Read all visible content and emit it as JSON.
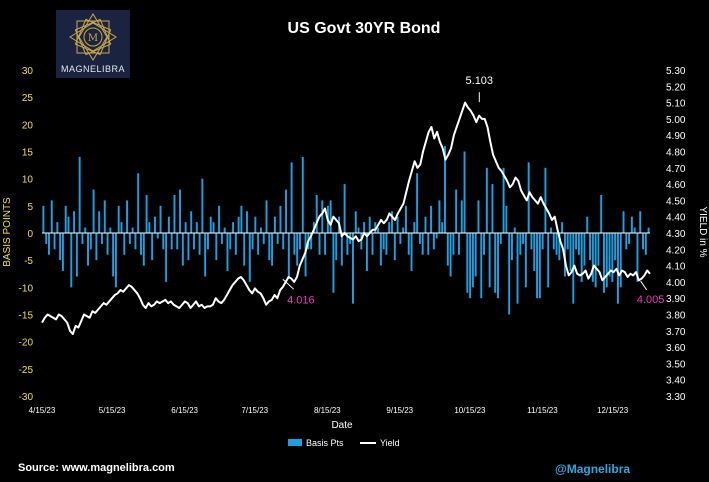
{
  "logo": {
    "text": "MAGNELIBRA"
  },
  "footer": {
    "source": "Source: www.magnelibra.com",
    "handle": "@Magnelibra"
  },
  "colors": {
    "bars": "#1e9fe0",
    "yield": "#ffffff",
    "annotation_low": "#e040c0",
    "left_axis": "#f0e040",
    "background": "#000000"
  },
  "chart_data": {
    "type": "bar+line",
    "title": "US Govt 30YR Bond",
    "xlabel": "Date",
    "ylabel_left": "BASIS POINTS",
    "ylabel_right": "YIELD in %",
    "ylim_left": [
      -30,
      30
    ],
    "ylim_right": [
      3.3,
      5.3
    ],
    "yticks_left": [
      "-30",
      "-25",
      "-20",
      "-15",
      "-10",
      "-5",
      "0",
      "5",
      "10",
      "15",
      "20",
      "25",
      "30"
    ],
    "yticks_right": [
      "3.30",
      "3.40",
      "3.50",
      "3.60",
      "3.70",
      "3.80",
      "3.90",
      "4.00",
      "4.10",
      "4.20",
      "4.30",
      "4.40",
      "4.50",
      "4.60",
      "4.70",
      "4.80",
      "4.90",
      "5.00",
      "5.10",
      "5.20",
      "5.30"
    ],
    "xticks": [
      "4/15/23",
      "5/15/23",
      "6/15/23",
      "7/15/23",
      "8/15/23",
      "9/15/23",
      "10/15/23",
      "11/15/23",
      "12/15/23"
    ],
    "x_range": [
      "4/15/23",
      "12/31/23"
    ],
    "legend": [
      "Basis Pts",
      "Yield"
    ],
    "legend_position": "bottom-center",
    "annotations": [
      {
        "label": "5.103",
        "date": "10/19/23",
        "value": 5.103,
        "color": "#ffffff"
      },
      {
        "label": "4.016",
        "date": "7/27/23",
        "value": 4.016,
        "color": "#e040c0"
      },
      {
        "label": "4.005",
        "date": "12/27/23",
        "value": 4.005,
        "color": "#e040c0"
      }
    ],
    "series": [
      {
        "name": "Basis Pts",
        "kind": "bar",
        "values": [
          5,
          -2,
          -4,
          6,
          -3,
          2,
          -5,
          -7,
          5,
          3,
          -10,
          4,
          -8,
          14,
          -2,
          1,
          -6,
          -3,
          8,
          -5,
          4,
          -2,
          6,
          -4,
          1,
          -8,
          -10,
          5,
          2,
          -4,
          6,
          -2,
          1,
          -3,
          11,
          -4,
          -6,
          7,
          2,
          -5,
          3,
          -1,
          5,
          -3,
          -9,
          3,
          -3,
          7,
          -3,
          8,
          -6,
          2,
          -5,
          4,
          -3,
          2,
          -4,
          10,
          -8,
          -3,
          3,
          2,
          -5,
          5,
          -2,
          1,
          -7,
          -3,
          2,
          -4,
          3,
          5,
          -6,
          4,
          -9,
          -3,
          3,
          -4,
          1,
          -2,
          6,
          -5,
          -6,
          3,
          -2,
          5,
          -3,
          8,
          -8,
          13,
          -4,
          -6,
          -3,
          14,
          -8,
          -3,
          -3,
          2,
          7,
          -4,
          6,
          -4,
          5,
          6,
          -11,
          -5,
          3,
          -6,
          9,
          -4,
          -2,
          -13,
          4,
          1,
          -3,
          2,
          -7,
          3,
          -4,
          2,
          1,
          -6,
          -3,
          -4,
          2,
          4,
          -5,
          3,
          -2,
          1,
          5,
          -4,
          -7,
          2,
          11,
          -2,
          -4,
          3,
          -4,
          5,
          -3,
          -1,
          6,
          2,
          16,
          -6,
          -8,
          -4,
          8,
          -4,
          6,
          15,
          -11,
          -12,
          -10,
          -8,
          6,
          -12,
          -4,
          12,
          -10,
          9,
          -11,
          -12,
          -2,
          12,
          5,
          -15,
          -5,
          1,
          -13,
          -4,
          -2,
          -10,
          13,
          -3,
          -7,
          -12,
          -12,
          -3,
          12,
          -10,
          1,
          -3,
          -4,
          -5,
          2,
          -8,
          -3,
          -7,
          -13,
          -3,
          -4,
          -9,
          -6,
          3,
          -5,
          -9,
          -10,
          -6,
          7,
          -11,
          -10,
          -8,
          -9,
          -5,
          -13,
          -10,
          4,
          -3,
          -2,
          3,
          1,
          -9,
          4,
          -3,
          -4,
          1
        ],
        "note": "one value per trading day from 4/17/23 to 12/29/23 (approximate, read off chart)"
      },
      {
        "name": "Yield",
        "kind": "line",
        "values": [
          3.75,
          3.78,
          3.8,
          3.79,
          3.78,
          3.77,
          3.8,
          3.79,
          3.77,
          3.75,
          3.7,
          3.68,
          3.73,
          3.72,
          3.76,
          3.8,
          3.79,
          3.78,
          3.82,
          3.81,
          3.83,
          3.85,
          3.87,
          3.86,
          3.88,
          3.9,
          3.92,
          3.93,
          3.95,
          3.94,
          3.96,
          3.98,
          3.97,
          3.95,
          3.93,
          3.9,
          3.86,
          3.84,
          3.87,
          3.85,
          3.86,
          3.88,
          3.87,
          3.88,
          3.89,
          3.87,
          3.88,
          3.86,
          3.85,
          3.84,
          3.86,
          3.88,
          3.87,
          3.84,
          3.86,
          3.88,
          3.85,
          3.86,
          3.84,
          3.85,
          3.85,
          3.86,
          3.9,
          3.88,
          3.87,
          3.89,
          3.92,
          3.95,
          3.98,
          4.0,
          4.02,
          4.03,
          4.01,
          3.98,
          3.95,
          3.93,
          3.96,
          3.94,
          3.93,
          3.9,
          3.86,
          3.88,
          3.89,
          3.92,
          3.9,
          3.95,
          3.97,
          4.0,
          4.03,
          4.02,
          4.0,
          4.03,
          4.1,
          4.14,
          4.18,
          4.25,
          4.28,
          4.32,
          4.36,
          4.4,
          4.42,
          4.45,
          4.38,
          4.35,
          4.4,
          4.38,
          4.36,
          4.28,
          4.3,
          4.28,
          4.27,
          4.26,
          4.28,
          4.25,
          4.26,
          4.3,
          4.28,
          4.3,
          4.32,
          4.32,
          4.35,
          4.38,
          4.36,
          4.38,
          4.42,
          4.4,
          4.38,
          4.42,
          4.45,
          4.48,
          4.55,
          4.62,
          4.68,
          4.74,
          4.7,
          4.72,
          4.8,
          4.86,
          4.92,
          4.95,
          4.88,
          4.92,
          4.86,
          4.82,
          4.75,
          4.78,
          4.82,
          4.9,
          4.95,
          5.0,
          5.05,
          5.1,
          5.07,
          5.05,
          5.02,
          4.98,
          5.02,
          5.0,
          5.0,
          4.95,
          4.86,
          4.78,
          4.74,
          4.7,
          4.68,
          4.65,
          4.62,
          4.58,
          4.6,
          4.64,
          4.62,
          4.56,
          4.53,
          4.5,
          4.55,
          4.52,
          4.5,
          4.48,
          4.52,
          4.48,
          4.45,
          4.42,
          4.38,
          4.4,
          4.32,
          4.25,
          4.2,
          4.1,
          4.04,
          4.06,
          4.1,
          4.05,
          4.04,
          4.05,
          4.07,
          4.02,
          4.05,
          4.1,
          4.08,
          4.06,
          4.01,
          4.03,
          4.05,
          4.07,
          4.06,
          4.08,
          4.04,
          4.07,
          4.06,
          4.03,
          4.05,
          4.04,
          4.06,
          4.01,
          4.02,
          4.04,
          4.07,
          4.05
        ],
        "note": "approximate daily yields read off chart; endpoints align with annotations"
      }
    ]
  }
}
